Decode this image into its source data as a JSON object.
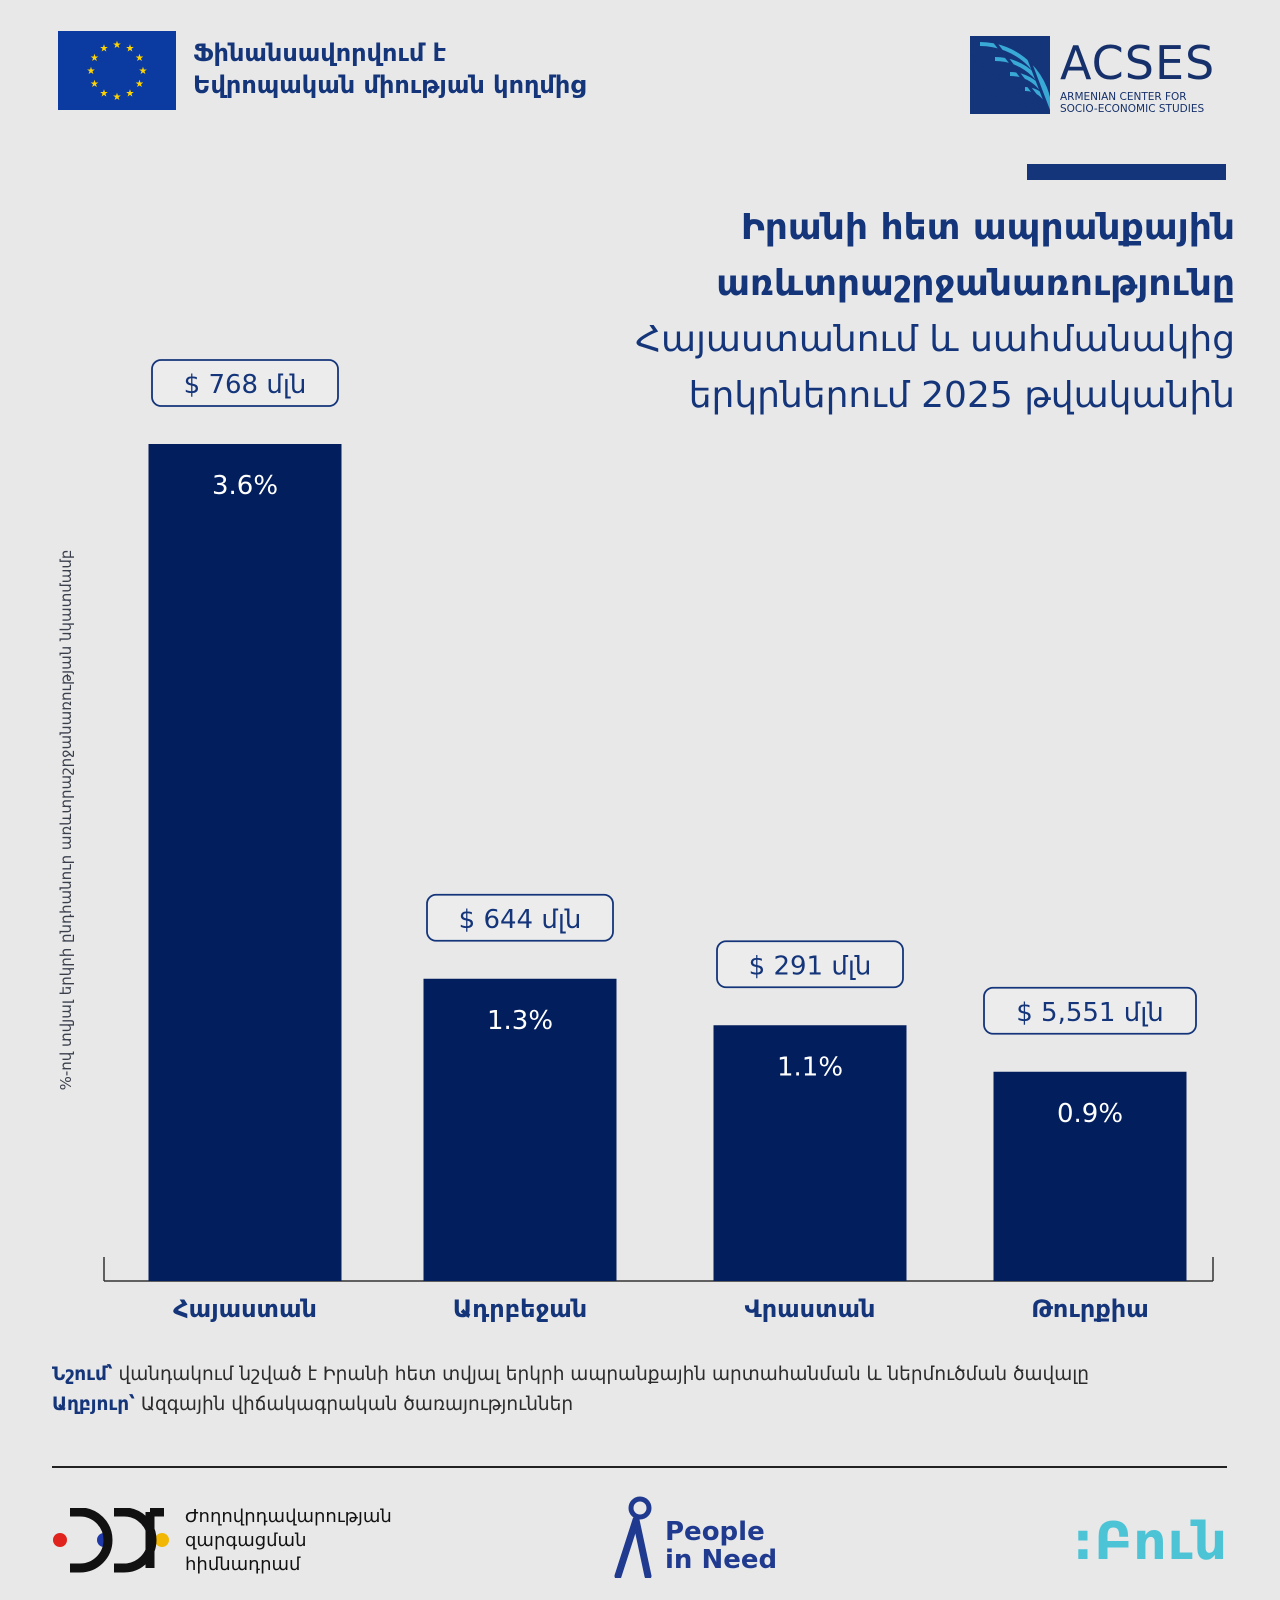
{
  "header": {
    "eu_funding_line1": "Ֆինանսավորվում է",
    "eu_funding_line2": "Եվրոպական միության կողմից",
    "acses_name": "ACSES",
    "acses_sub_line1": "ARMENIAN CENTER FOR",
    "acses_sub_line2": "SOCIO-ECONOMIC STUDIES"
  },
  "title": {
    "bold_line1": "Իրանի հետ ապրանքային",
    "bold_line2": "առևտրաշրջանառությունը",
    "light_line1": "Հայաստանում և սահմանակից",
    "light_line2": "երկրներում 2025 թվականին"
  },
  "colors": {
    "background": "#e8e8e8",
    "bar": "#031e5c",
    "accent": "#14357a",
    "fun": "#4cc4d6"
  },
  "chart_data": {
    "type": "bar",
    "ylabel": "%-ով տվյալ երկրի ընդհանուր առևտրաշրջանառության նկատմամբ",
    "categories": [
      "Հայաստան",
      "Ադրբեջան",
      "Վրաստան",
      "Թուրքիա"
    ],
    "values": [
      3.6,
      1.3,
      1.1,
      0.9
    ],
    "value_labels": [
      "3.6%",
      "1.3%",
      "1.1%",
      "0.9%"
    ],
    "amount_labels": [
      "$ 768 մլն",
      "$ 644 մլն",
      "$ 291 մլն",
      "$ 5,551 մլն"
    ],
    "grid": false
  },
  "notes": {
    "note_label": "Նշում՝",
    "note_text": " վանդակում նշված է Իրանի հետ տվյալ երկրի ապրանքային արտահանման և ներմուծման ծավալը",
    "source_label": "Աղբյուր՝",
    "source_text": " Ազգային վիճակագրական ծառայություններ"
  },
  "footer": {
    "pdf_line1": "Ժողովրդավարության",
    "pdf_line2": "զարգացման",
    "pdf_line3": "հիմնադրամ",
    "pin_line1": "People",
    "pin_line2": "in Need",
    "fun_text": ":Բուն"
  }
}
